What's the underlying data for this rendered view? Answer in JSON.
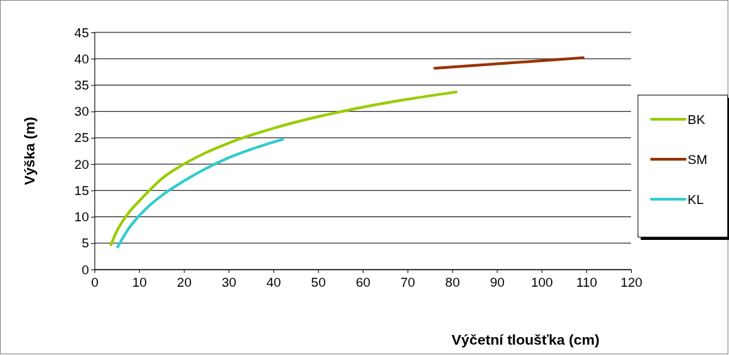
{
  "chart_data": {
    "type": "line",
    "xlabel": "Výčetní tloušťka (cm)",
    "ylabel": "Výška (m)",
    "xlim": [
      0,
      120
    ],
    "xticks": [
      0,
      10,
      20,
      30,
      40,
      50,
      60,
      70,
      80,
      90,
      100,
      110,
      120
    ],
    "ylim": [
      0,
      45
    ],
    "yticks": [
      0,
      5,
      10,
      15,
      20,
      25,
      30,
      35,
      40,
      45
    ],
    "grid": "y",
    "legend": "right",
    "marker": "none",
    "line_style": "solid",
    "series": [
      {
        "name": "BK",
        "color": "#99cc00",
        "x": [
          3.7,
          5,
          7.5,
          10,
          12.5,
          15,
          20,
          25,
          30,
          40,
          50,
          60,
          70,
          80.9
        ],
        "values": [
          4.7,
          7.3,
          10.6,
          13,
          15.2,
          17.2,
          20,
          22.2,
          24,
          26.8,
          29,
          30.8,
          32.3,
          33.7
        ]
      },
      {
        "name": "SM",
        "color": "#993300",
        "x": [
          76.1,
          109.3
        ],
        "values": [
          38.2,
          40.2
        ]
      },
      {
        "name": "KL",
        "color": "#33cccc",
        "x": [
          5.2,
          7.5,
          10,
          12.5,
          15,
          20,
          25,
          30,
          35,
          42.1
        ],
        "values": [
          4.3,
          7.6,
          10.2,
          12.3,
          14,
          16.8,
          19.2,
          21.2,
          22.8,
          24.7
        ]
      }
    ]
  }
}
